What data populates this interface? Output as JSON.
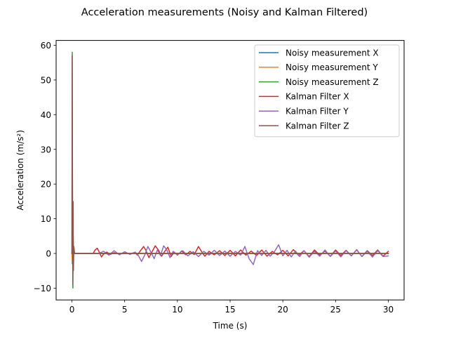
{
  "chart_data": {
    "type": "line",
    "title": "Acceleration measurements (Noisy and Kalman Filtered)",
    "xlabel": "Time (s)",
    "ylabel": "Acceleration (m/s²)",
    "xlim": [
      -1.5,
      31.5
    ],
    "ylim": [
      -13.4,
      61.4
    ],
    "xticks": [
      0,
      5,
      10,
      15,
      20,
      25,
      30
    ],
    "xtick_labels": [
      "0",
      "5",
      "10",
      "15",
      "20",
      "25",
      "30"
    ],
    "yticks": [
      -10,
      0,
      10,
      20,
      30,
      40,
      50,
      60
    ],
    "ytick_labels": [
      "−10",
      "0",
      "10",
      "20",
      "30",
      "40",
      "50",
      "60"
    ],
    "grid": false,
    "legend_position": "top-right",
    "series": [
      {
        "name": "Noisy measurement X",
        "color": "#1f77b4",
        "x": [
          0,
          0.02,
          0.04,
          0.06,
          0.08,
          0.1,
          0.15,
          0.3,
          30
        ],
        "y": [
          0,
          2,
          -3,
          1,
          -1,
          0.5,
          0,
          0,
          0
        ]
      },
      {
        "name": "Noisy measurement Y",
        "color": "#ff7f0e",
        "x": [
          0,
          0.02,
          0.04,
          0.06,
          0.08,
          0.1,
          0.15,
          0.3,
          30
        ],
        "y": [
          0,
          -2,
          3,
          -1,
          1,
          0,
          0,
          0,
          0
        ]
      },
      {
        "name": "Noisy measurement Z",
        "color": "#2ca02c",
        "x": [
          0,
          0.03,
          0.06,
          0.09,
          0.12,
          0.15,
          0.2,
          0.3,
          30
        ],
        "y": [
          0,
          58,
          10,
          -10,
          5,
          0,
          0,
          0,
          0
        ]
      },
      {
        "name": "Kalman Filter X",
        "color": "#d62728",
        "x": [
          0,
          2.0,
          2.2,
          2.4,
          2.6,
          2.8,
          3.0,
          3.3,
          3.6,
          4.0,
          4.5,
          5.0,
          5.5,
          6.0,
          6.2,
          6.5,
          6.8,
          7.0,
          7.3,
          7.6,
          7.9,
          8.2,
          8.5,
          8.8,
          9.1,
          9.4,
          9.7,
          10.0,
          10.4,
          10.8,
          11.2,
          11.6,
          12.0,
          12.3,
          12.6,
          13.0,
          13.5,
          14.0,
          14.5,
          15.0,
          15.5,
          16.0,
          16.5,
          17.0,
          17.5,
          18.0,
          18.5,
          19.0,
          19.5,
          20.0,
          20.5,
          21.0,
          21.5,
          22.0,
          22.5,
          23.0,
          23.5,
          24.0,
          24.5,
          25.0,
          25.5,
          26.0,
          26.5,
          27.0,
          27.5,
          28.0,
          28.5,
          29.0,
          29.5,
          30.0
        ],
        "y": [
          0,
          0,
          1.0,
          1.5,
          0.3,
          -1.0,
          -0.2,
          0.4,
          -0.3,
          0.2,
          -0.2,
          0.1,
          -0.1,
          0.3,
          -0.5,
          0.8,
          2.0,
          1.0,
          -1.2,
          0.5,
          2.2,
          1.0,
          -0.8,
          0.6,
          1.8,
          -0.9,
          0.4,
          -0.5,
          0.7,
          -0.4,
          0.6,
          -0.3,
          2.0,
          0.5,
          -0.8,
          0.6,
          -0.4,
          0.8,
          -0.6,
          0.9,
          -0.7,
          1.0,
          -0.5,
          0.7,
          -0.6,
          1.0,
          -0.8,
          0.6,
          -0.4,
          0.9,
          -0.7,
          1.1,
          -0.6,
          0.8,
          -0.9,
          1.0,
          -0.5,
          0.7,
          -0.8,
          1.0,
          -0.6,
          0.9,
          -0.7,
          1.1,
          -0.9,
          0.8,
          -0.6,
          1.0,
          -0.8,
          0.6
        ]
      },
      {
        "name": "Kalman Filter Y",
        "color": "#9467bd",
        "x": [
          0,
          2.5,
          3.0,
          3.5,
          4.0,
          4.5,
          5.0,
          5.5,
          6.0,
          6.3,
          6.6,
          6.9,
          7.2,
          7.5,
          7.8,
          8.1,
          8.4,
          8.7,
          9.0,
          9.3,
          9.6,
          10.0,
          10.5,
          11.0,
          11.5,
          12.0,
          12.5,
          13.0,
          13.5,
          14.0,
          14.5,
          15.0,
          15.5,
          16.0,
          16.4,
          16.8,
          17.2,
          17.6,
          18.0,
          18.4,
          18.8,
          19.2,
          19.6,
          20.0,
          20.4,
          20.8,
          21.2,
          21.6,
          22.0,
          22.5,
          23.0,
          23.5,
          24.0,
          24.5,
          25.0,
          25.5,
          26.0,
          26.5,
          27.0,
          27.5,
          28.0,
          28.5,
          29.0,
          29.5,
          30.0
        ],
        "y": [
          0,
          0,
          0.6,
          -0.5,
          0.8,
          -0.4,
          0.5,
          -0.3,
          0.4,
          -0.6,
          -2.3,
          -0.5,
          2.0,
          0.3,
          -1.5,
          1.0,
          -0.6,
          2.2,
          1.0,
          -1.2,
          0.6,
          -0.4,
          0.8,
          -0.7,
          0.5,
          -0.9,
          0.6,
          -0.5,
          0.9,
          -0.6,
          0.7,
          -0.8,
          0.6,
          -0.5,
          2.0,
          -1.5,
          -3.2,
          0.8,
          -0.6,
          0.9,
          -0.8,
          0.5,
          2.5,
          -0.7,
          0.9,
          -1.0,
          0.7,
          -0.9,
          0.8,
          -1.1,
          0.6,
          -0.8,
          1.0,
          -0.9,
          0.7,
          -1.0,
          0.8,
          -0.7,
          1.0,
          -0.9,
          0.6,
          -1.0,
          0.8,
          -0.9,
          -0.7
        ]
      },
      {
        "name": "Kalman Filter Z",
        "color": "#8c564b",
        "x": [
          0,
          0.02,
          0.05,
          0.08,
          0.11,
          0.14,
          0.18,
          0.25,
          0.4,
          30
        ],
        "y": [
          0,
          57,
          20,
          -9,
          15,
          -5,
          2,
          0,
          0,
          0
        ]
      }
    ]
  }
}
